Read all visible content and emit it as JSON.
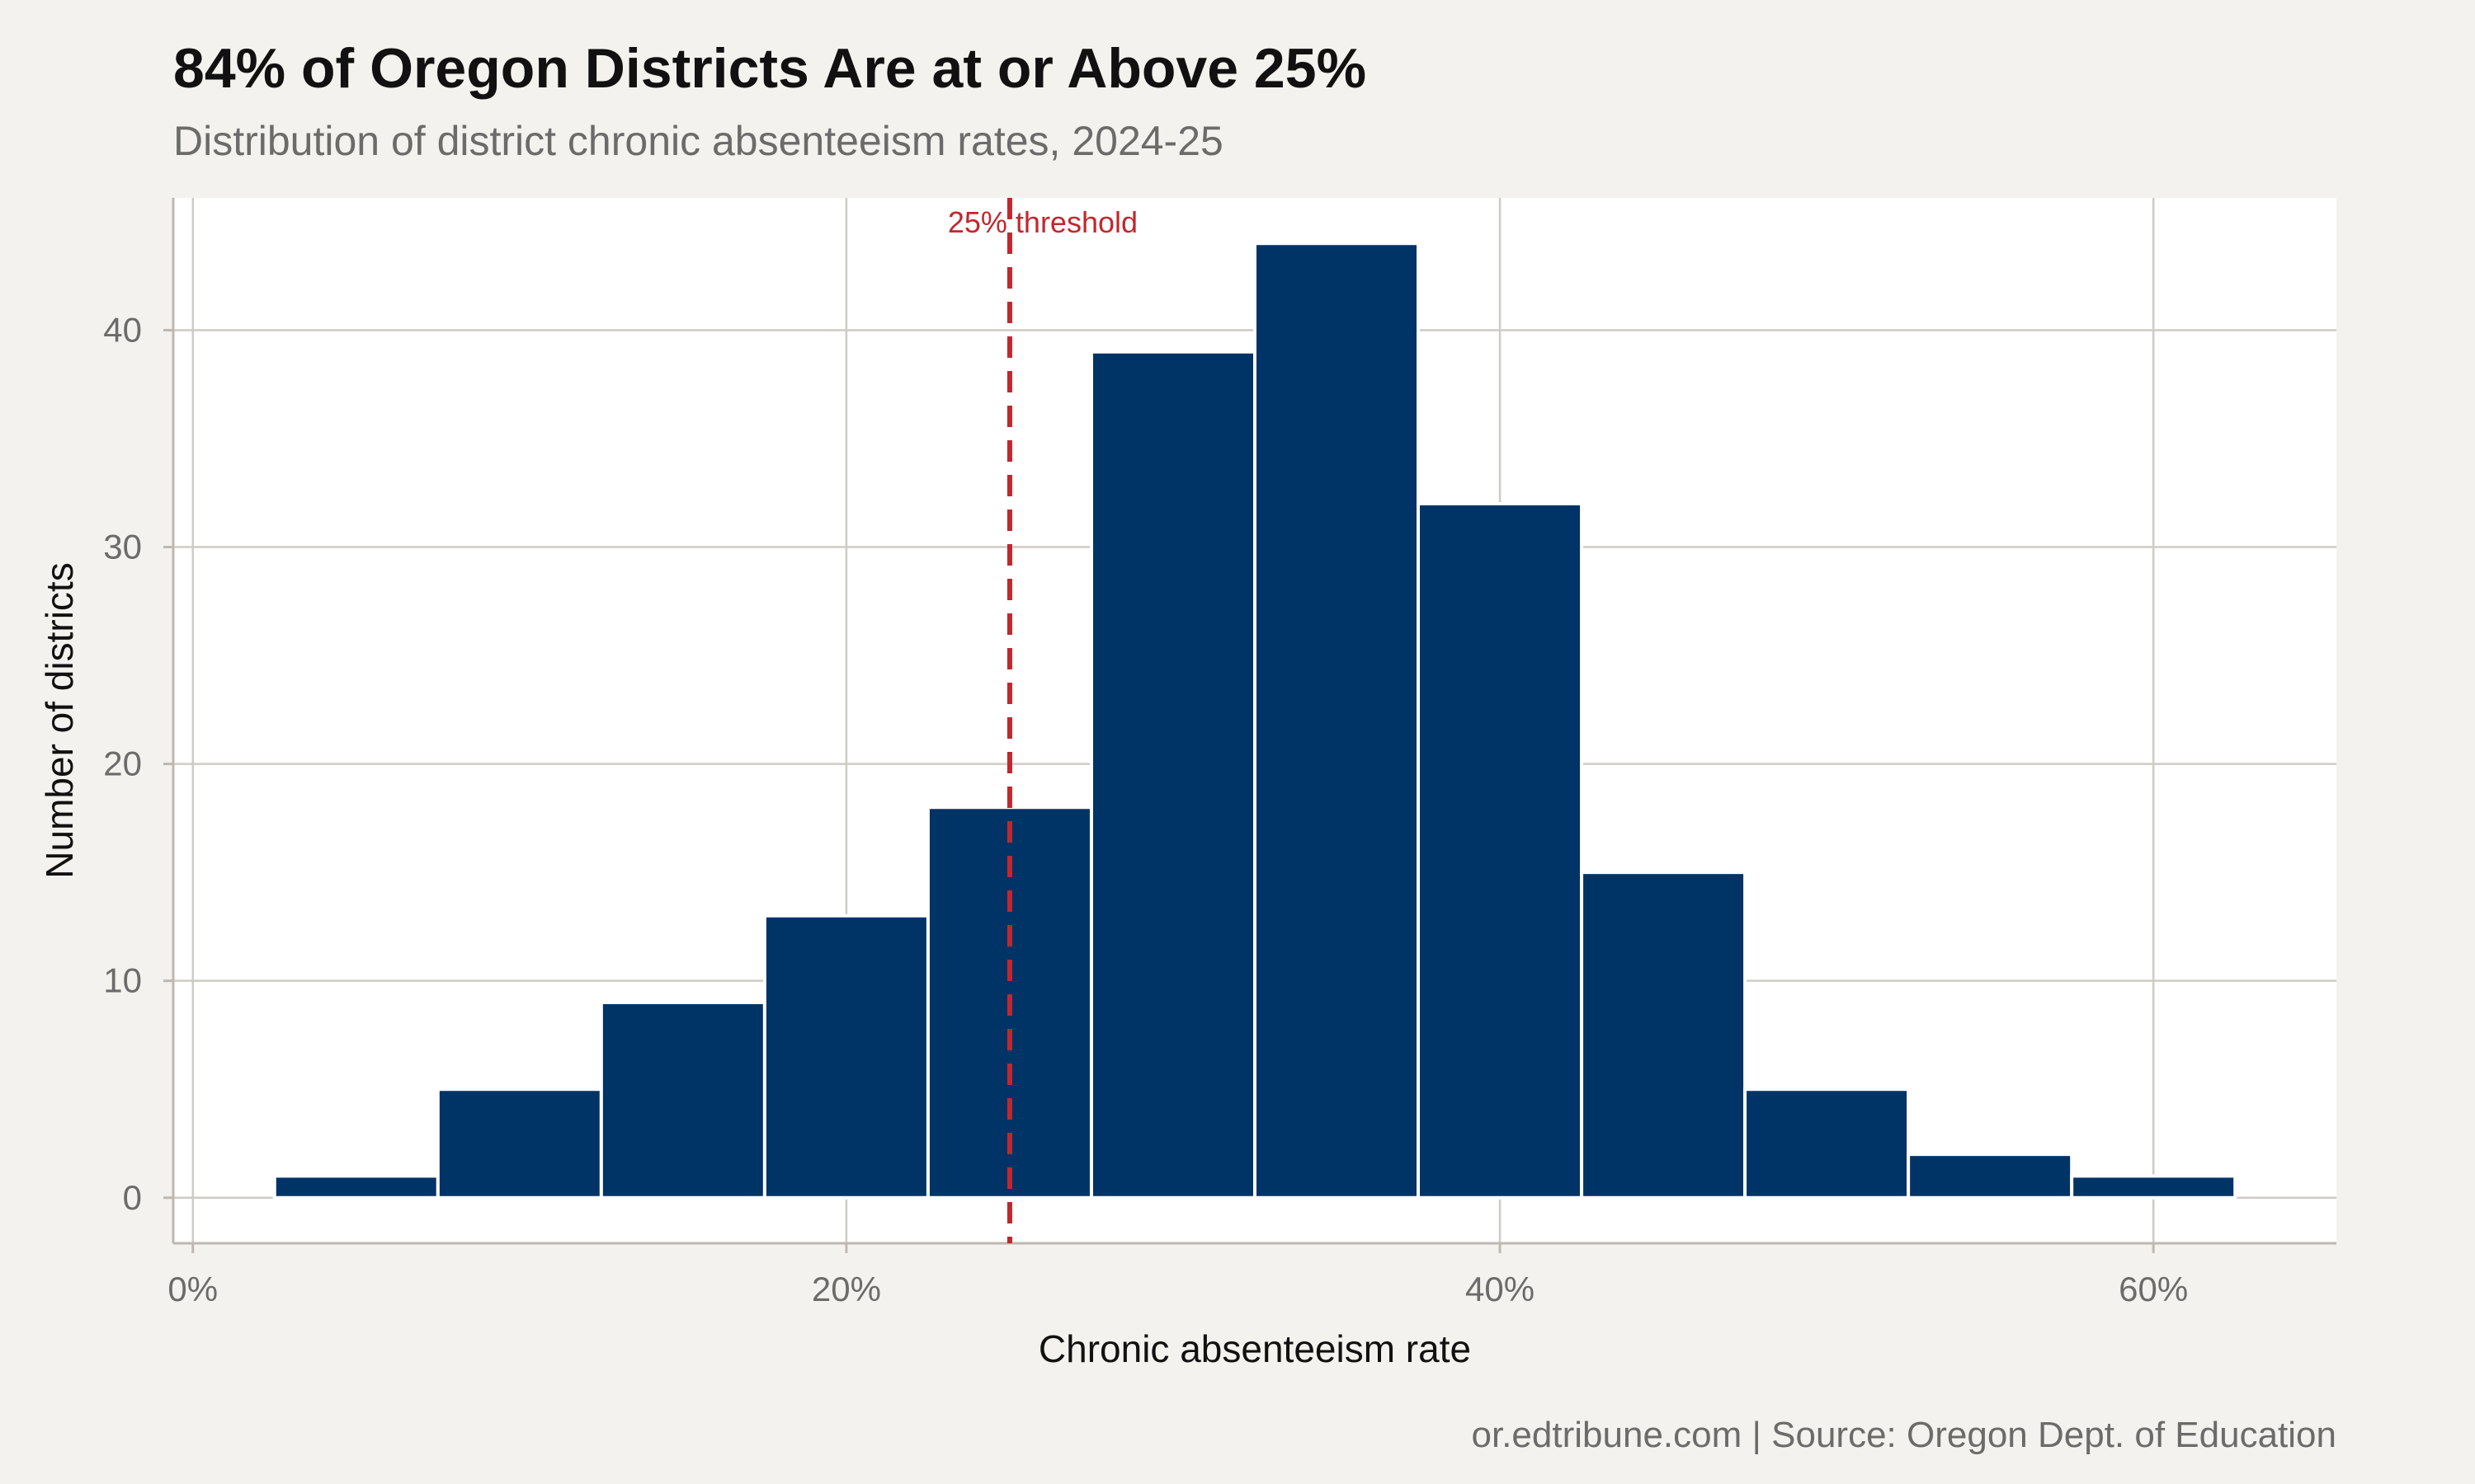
{
  "chart_data": {
    "type": "bar",
    "title": "84% of Oregon Districts Are at or Above 25%",
    "subtitle": "Distribution of district chronic absenteeism rates, 2024-25",
    "caption": "or.edtribune.com | Source: Oregon Dept. of Education",
    "xlabel": "Chronic absenteeism rate",
    "ylabel": "Number of districts",
    "bins": [
      {
        "start": 2.5,
        "end": 7.5,
        "count": 1
      },
      {
        "start": 7.5,
        "end": 12.5,
        "count": 5
      },
      {
        "start": 12.5,
        "end": 17.5,
        "count": 9
      },
      {
        "start": 17.5,
        "end": 22.5,
        "count": 13
      },
      {
        "start": 22.5,
        "end": 27.5,
        "count": 18
      },
      {
        "start": 27.5,
        "end": 32.5,
        "count": 39
      },
      {
        "start": 32.5,
        "end": 37.5,
        "count": 44
      },
      {
        "start": 37.5,
        "end": 42.5,
        "count": 32
      },
      {
        "start": 42.5,
        "end": 47.5,
        "count": 15
      },
      {
        "start": 47.5,
        "end": 52.5,
        "count": 5
      },
      {
        "start": 52.5,
        "end": 57.5,
        "count": 2
      },
      {
        "start": 57.5,
        "end": 62.5,
        "count": 1
      }
    ],
    "xlim": [
      -0.6,
      65.6
    ],
    "ylim": [
      -2.1,
      46.1
    ],
    "x_ticks": [
      0,
      20,
      40,
      60
    ],
    "x_tick_labels": [
      "0%",
      "20%",
      "40%",
      "60%"
    ],
    "y_ticks": [
      0,
      10,
      20,
      30,
      40
    ],
    "y_tick_labels": [
      "0",
      "10",
      "20",
      "30",
      "40"
    ],
    "threshold": {
      "value": 25,
      "label": "25% threshold"
    },
    "grid": true,
    "colors": {
      "bar": "#003366",
      "bar_outline": "#ffffff",
      "threshold": "#c1272d",
      "background": "#f4f2ee",
      "panel": "#ffffff",
      "grid": "#cfcbc4"
    }
  }
}
